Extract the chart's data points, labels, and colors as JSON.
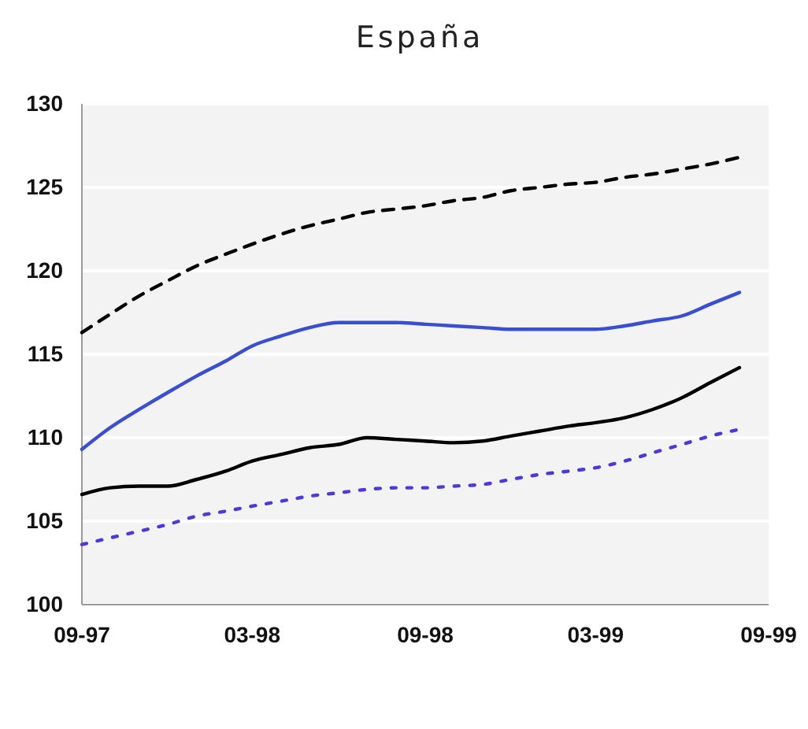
{
  "chart_data": {
    "type": "line",
    "title": "España",
    "x": [
      "1997-09",
      "1997-10",
      "1997-11",
      "1997-12",
      "1998-01",
      "1998-02",
      "1998-03",
      "1998-04",
      "1998-05",
      "1998-06",
      "1998-07",
      "1998-08",
      "1998-09",
      "1998-10",
      "1998-11",
      "1998-12",
      "1999-01",
      "1999-02",
      "1999-03",
      "1999-04",
      "1999-05",
      "1999-06",
      "1999-07",
      "1999-08"
    ],
    "series": [
      {
        "color": "#000000",
        "line_style": "dashed",
        "values": [
          116.3,
          117.4,
          118.5,
          119.4,
          120.3,
          121.0,
          121.6,
          122.2,
          122.7,
          123.1,
          123.5,
          123.7,
          123.9,
          124.2,
          124.4,
          124.8,
          125.0,
          125.2,
          125.3,
          125.6,
          125.8,
          126.1,
          126.4,
          126.8
        ]
      },
      {
        "color": "#3a4fd0",
        "line_style": "solid",
        "values": [
          109.3,
          110.6,
          111.7,
          112.7,
          113.7,
          114.6,
          115.5,
          116.1,
          116.6,
          116.9,
          116.9,
          116.9,
          116.8,
          116.7,
          116.6,
          116.5,
          116.5,
          116.5,
          116.5,
          116.7,
          117.0,
          117.3,
          118.0,
          118.7
        ]
      },
      {
        "color": "#000000",
        "line_style": "solid",
        "values": [
          106.6,
          107.0,
          107.1,
          107.1,
          107.5,
          108.0,
          108.6,
          109.0,
          109.4,
          109.6,
          110.0,
          109.9,
          109.8,
          109.7,
          109.8,
          110.1,
          110.4,
          110.7,
          110.9,
          111.2,
          111.7,
          112.4,
          113.3,
          114.2
        ]
      },
      {
        "color": "#4a3ad8",
        "line_style": "dotted",
        "values": [
          103.6,
          104.0,
          104.4,
          104.8,
          105.3,
          105.6,
          105.9,
          106.2,
          106.5,
          106.7,
          106.9,
          107.0,
          107.0,
          107.1,
          107.2,
          107.5,
          107.8,
          108.0,
          108.2,
          108.6,
          109.1,
          109.6,
          110.1,
          110.5
        ]
      }
    ],
    "xlim": [
      "1997-09",
      "1999-09"
    ],
    "xticks": [
      {
        "value": "1997-09",
        "label": "09-97"
      },
      {
        "value": "1998-03",
        "label": "03-98"
      },
      {
        "value": "1998-09",
        "label": "09-98"
      },
      {
        "value": "1999-03",
        "label": "03-99"
      },
      {
        "value": "1999-09",
        "label": "09-99"
      }
    ],
    "ylim": [
      100,
      130
    ],
    "yticks": [
      100,
      105,
      110,
      115,
      120,
      125,
      130
    ],
    "grid": "y"
  }
}
